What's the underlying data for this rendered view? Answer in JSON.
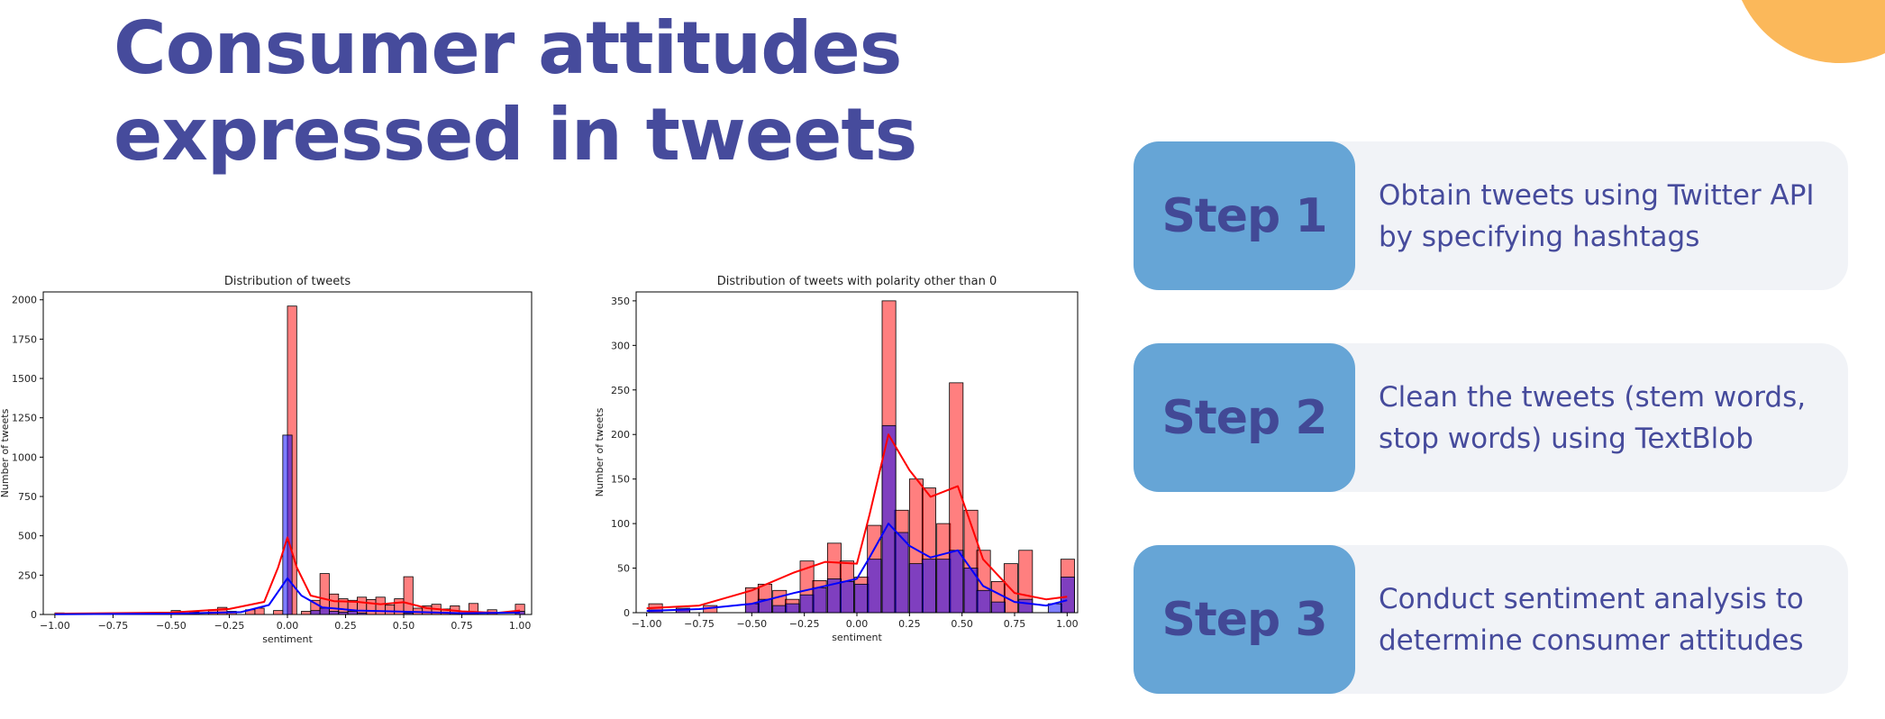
{
  "slide": {
    "title_line1": "Consumer attitudes",
    "title_line2": "expressed in tweets",
    "colors": {
      "title": "#464b9c",
      "accent": "#fbb85a",
      "badge": "#66a5d6",
      "card": "#f1f3f7"
    }
  },
  "steps": [
    {
      "label": "Step 1",
      "text": "Obtain tweets using Twitter API by specifying hashtags"
    },
    {
      "label": "Step 2",
      "text": "Clean the tweets (stem words, stop words) using TextBlob"
    },
    {
      "label": "Step 3",
      "text": "Conduct sentiment analysis to determine consumer attitudes"
    }
  ],
  "chart_data": [
    {
      "type": "bar",
      "title": "Distribution of tweets",
      "xlabel": "sentiment",
      "ylabel": "Number of tweets",
      "xlim": [
        -1.05,
        1.05
      ],
      "ylim": [
        0,
        2050
      ],
      "xticks": [
        "-1.00",
        "-0.75",
        "-0.50",
        "-0.25",
        "0.00",
        "0.25",
        "0.50",
        "0.75",
        "1.00"
      ],
      "yticks": [
        "0",
        "250",
        "500",
        "750",
        "1000",
        "1250",
        "1500",
        "1750",
        "2000"
      ],
      "bin_width": 0.04,
      "series": [
        {
          "color": "#ff0000",
          "bins": [
            [
              -1.0,
              10
            ],
            [
              -0.5,
              25
            ],
            [
              -0.42,
              15
            ],
            [
              -0.34,
              30
            ],
            [
              -0.3,
              45
            ],
            [
              -0.26,
              20
            ],
            [
              -0.18,
              30
            ],
            [
              -0.14,
              40
            ],
            [
              -0.06,
              25
            ],
            [
              0.0,
              1960
            ],
            [
              0.06,
              20
            ],
            [
              0.1,
              90
            ],
            [
              0.14,
              260
            ],
            [
              0.18,
              130
            ],
            [
              0.22,
              100
            ],
            [
              0.26,
              90
            ],
            [
              0.3,
              110
            ],
            [
              0.34,
              95
            ],
            [
              0.38,
              110
            ],
            [
              0.42,
              60
            ],
            [
              0.46,
              100
            ],
            [
              0.5,
              240
            ],
            [
              0.54,
              40
            ],
            [
              0.58,
              55
            ],
            [
              0.62,
              65
            ],
            [
              0.66,
              35
            ],
            [
              0.7,
              55
            ],
            [
              0.78,
              70
            ],
            [
              0.86,
              30
            ],
            [
              0.98,
              65
            ]
          ]
        },
        {
          "color": "#0000ff",
          "bins": [
            [
              -0.02,
              1140
            ],
            [
              0.1,
              25
            ],
            [
              0.14,
              40
            ],
            [
              0.18,
              20
            ],
            [
              0.22,
              15
            ],
            [
              0.26,
              20
            ],
            [
              0.3,
              10
            ],
            [
              0.5,
              10
            ],
            [
              0.98,
              20
            ]
          ]
        }
      ],
      "kde": [
        {
          "color": "#ff0000",
          "points": [
            [
              -1.0,
              5
            ],
            [
              -0.5,
              12
            ],
            [
              -0.25,
              35
            ],
            [
              -0.1,
              80
            ],
            [
              -0.04,
              300
            ],
            [
              0.0,
              490
            ],
            [
              0.04,
              300
            ],
            [
              0.1,
              120
            ],
            [
              0.2,
              85
            ],
            [
              0.3,
              80
            ],
            [
              0.4,
              65
            ],
            [
              0.5,
              78
            ],
            [
              0.6,
              40
            ],
            [
              0.75,
              20
            ],
            [
              0.9,
              10
            ],
            [
              1.0,
              25
            ]
          ]
        },
        {
          "color": "#0000ff",
          "points": [
            [
              -1.0,
              2
            ],
            [
              -0.5,
              5
            ],
            [
              -0.2,
              15
            ],
            [
              -0.08,
              60
            ],
            [
              0.0,
              230
            ],
            [
              0.06,
              120
            ],
            [
              0.15,
              45
            ],
            [
              0.3,
              25
            ],
            [
              0.5,
              18
            ],
            [
              0.75,
              8
            ],
            [
              1.0,
              12
            ]
          ]
        }
      ]
    },
    {
      "type": "bar",
      "title": "Distribution of tweets with polarity other than 0",
      "xlabel": "sentiment",
      "ylabel": "Number of tweets",
      "xlim": [
        -1.05,
        1.05
      ],
      "ylim": [
        0,
        360
      ],
      "xticks": [
        "-1.00",
        "-0.75",
        "-0.50",
        "-0.25",
        "0.00",
        "0.25",
        "0.50",
        "0.75",
        "1.00"
      ],
      "yticks": [
        "0",
        "50",
        "100",
        "150",
        "200",
        "250",
        "300",
        "350"
      ],
      "bin_width": 0.065,
      "series": [
        {
          "color": "#ff0000",
          "bins": [
            [
              -0.99,
              10
            ],
            [
              -0.86,
              5
            ],
            [
              -0.73,
              8
            ],
            [
              -0.53,
              28
            ],
            [
              -0.47,
              32
            ],
            [
              -0.4,
              25
            ],
            [
              -0.34,
              15
            ],
            [
              -0.27,
              58
            ],
            [
              -0.21,
              36
            ],
            [
              -0.14,
              78
            ],
            [
              -0.08,
              58
            ],
            [
              -0.01,
              40
            ],
            [
              0.05,
              98
            ],
            [
              0.12,
              350
            ],
            [
              0.18,
              115
            ],
            [
              0.25,
              150
            ],
            [
              0.31,
              140
            ],
            [
              0.38,
              100
            ],
            [
              0.44,
              258
            ],
            [
              0.51,
              115
            ],
            [
              0.57,
              70
            ],
            [
              0.64,
              35
            ],
            [
              0.7,
              55
            ],
            [
              0.77,
              70
            ],
            [
              0.97,
              60
            ]
          ]
        },
        {
          "color": "#0000ff",
          "bins": [
            [
              -0.99,
              3
            ],
            [
              -0.86,
              3
            ],
            [
              -0.53,
              10
            ],
            [
              -0.47,
              15
            ],
            [
              -0.4,
              8
            ],
            [
              -0.34,
              10
            ],
            [
              -0.27,
              20
            ],
            [
              -0.21,
              28
            ],
            [
              -0.14,
              38
            ],
            [
              -0.08,
              35
            ],
            [
              -0.01,
              32
            ],
            [
              0.05,
              60
            ],
            [
              0.12,
              210
            ],
            [
              0.18,
              90
            ],
            [
              0.25,
              55
            ],
            [
              0.31,
              60
            ],
            [
              0.38,
              60
            ],
            [
              0.44,
              70
            ],
            [
              0.51,
              50
            ],
            [
              0.57,
              25
            ],
            [
              0.64,
              12
            ],
            [
              0.77,
              15
            ],
            [
              0.91,
              10
            ],
            [
              0.97,
              40
            ]
          ]
        }
      ],
      "kde": [
        {
          "color": "#ff0000",
          "points": [
            [
              -1.0,
              5
            ],
            [
              -0.75,
              8
            ],
            [
              -0.5,
              25
            ],
            [
              -0.3,
              45
            ],
            [
              -0.15,
              57
            ],
            [
              0.0,
              55
            ],
            [
              0.06,
              110
            ],
            [
              0.15,
              200
            ],
            [
              0.25,
              160
            ],
            [
              0.35,
              130
            ],
            [
              0.48,
              142
            ],
            [
              0.6,
              60
            ],
            [
              0.75,
              22
            ],
            [
              0.9,
              15
            ],
            [
              1.0,
              18
            ]
          ]
        },
        {
          "color": "#0000ff",
          "points": [
            [
              -1.0,
              2
            ],
            [
              -0.75,
              4
            ],
            [
              -0.5,
              10
            ],
            [
              -0.3,
              22
            ],
            [
              -0.15,
              30
            ],
            [
              0.0,
              38
            ],
            [
              0.06,
              62
            ],
            [
              0.15,
              100
            ],
            [
              0.25,
              75
            ],
            [
              0.35,
              62
            ],
            [
              0.48,
              70
            ],
            [
              0.6,
              30
            ],
            [
              0.75,
              12
            ],
            [
              0.9,
              8
            ],
            [
              1.0,
              14
            ]
          ]
        }
      ]
    }
  ]
}
